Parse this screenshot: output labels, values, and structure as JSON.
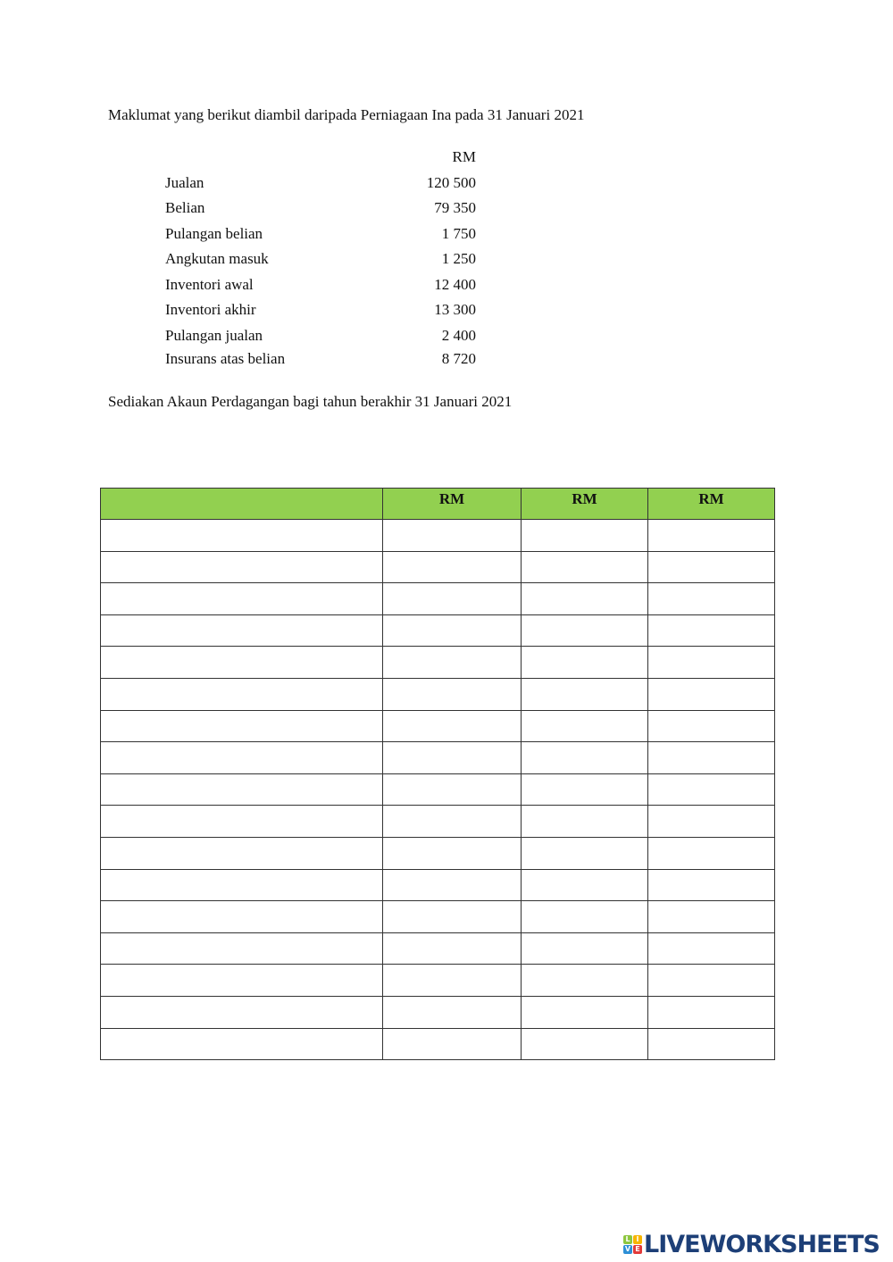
{
  "intro": "Maklumat yang berikut diambil daripada Perniagaan Ina pada 31 Januari 2021",
  "currency_header": "RM",
  "items": [
    {
      "label": "Jualan",
      "value": "120 500"
    },
    {
      "label": "Belian",
      "value": "79 350"
    },
    {
      "label": "Pulangan belian",
      "value": "1 750"
    },
    {
      "label": "Angkutan masuk",
      "value": "1 250"
    },
    {
      "label": "Inventori awal",
      "value": "12 400"
    },
    {
      "label": "Inventori akhir",
      "value": "13 300"
    },
    {
      "label": "Pulangan jualan",
      "value": "2 400"
    },
    {
      "label": "Insurans atas belian",
      "value": "8 720"
    }
  ],
  "instruction": "Sediakan Akaun Perdagangan bagi tahun berakhir 31 Januari 2021",
  "table": {
    "headers": [
      "",
      "RM",
      "RM",
      "RM"
    ],
    "header_color": "#92d050",
    "empty_rows": 17
  },
  "logo": {
    "tiles": [
      "L",
      "I",
      "V",
      "E"
    ],
    "text": "LIVEWORKSHEETS"
  }
}
